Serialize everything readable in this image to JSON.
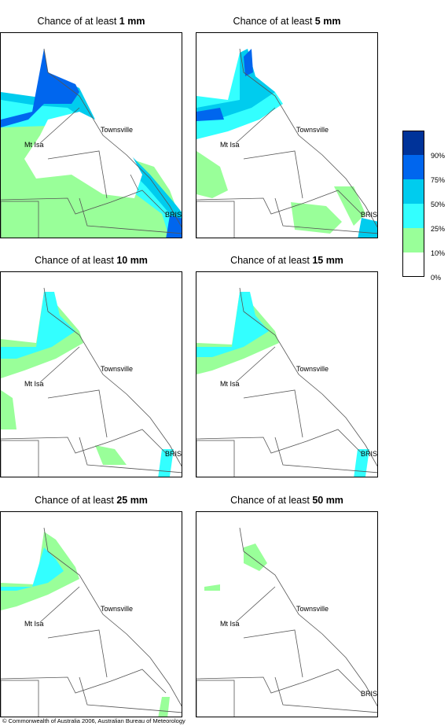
{
  "panels": [
    {
      "title_prefix": "Chance of at least ",
      "amount": "1 mm"
    },
    {
      "title_prefix": "Chance of at least ",
      "amount": "5 mm"
    },
    {
      "title_prefix": "Chance of at least ",
      "amount": "10 mm"
    },
    {
      "title_prefix": "Chance of at least ",
      "amount": "15 mm"
    },
    {
      "title_prefix": "Chance of at least ",
      "amount": "25 mm"
    },
    {
      "title_prefix": "Chance of at least ",
      "amount": "50 mm"
    }
  ],
  "places": {
    "townsville": "Townsville",
    "mt_isa": "Mt Isa",
    "brisbane": "BRIS"
  },
  "legend": {
    "colors": [
      "#003399",
      "#0066ee",
      "#00ccee",
      "#33ffff",
      "#99ff99",
      "#ffffff"
    ],
    "labels": [
      "90%",
      "75%",
      "50%",
      "25%",
      "10%",
      "0%"
    ]
  },
  "copyright": "© Commonwealth of Australia 2006, Australian Bureau of Meteorology"
}
